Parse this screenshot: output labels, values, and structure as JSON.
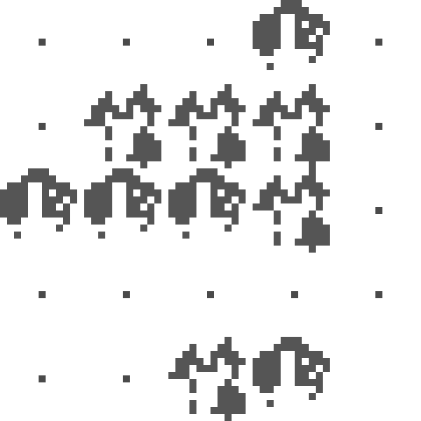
{
  "colors": {
    "ink": "#555555",
    "background": "#ffffff"
  },
  "grid": {
    "rows": 5,
    "cols": 5,
    "cells": [
      [
        "empty",
        "empty",
        "empty",
        "deciduous",
        "empty"
      ],
      [
        "empty",
        "conifer",
        "conifer",
        "conifer",
        "empty"
      ],
      [
        "deciduous",
        "deciduous",
        "deciduous",
        "conifer",
        "empty"
      ],
      [
        "empty",
        "empty",
        "empty",
        "empty",
        "empty"
      ],
      [
        "empty",
        "empty",
        "conifer",
        "deciduous",
        "blank"
      ]
    ]
  },
  "legend_icons": {
    "conifer": "conifer-forest-icon",
    "deciduous": "deciduous-forest-icon",
    "empty": "empty-tile-dot"
  }
}
